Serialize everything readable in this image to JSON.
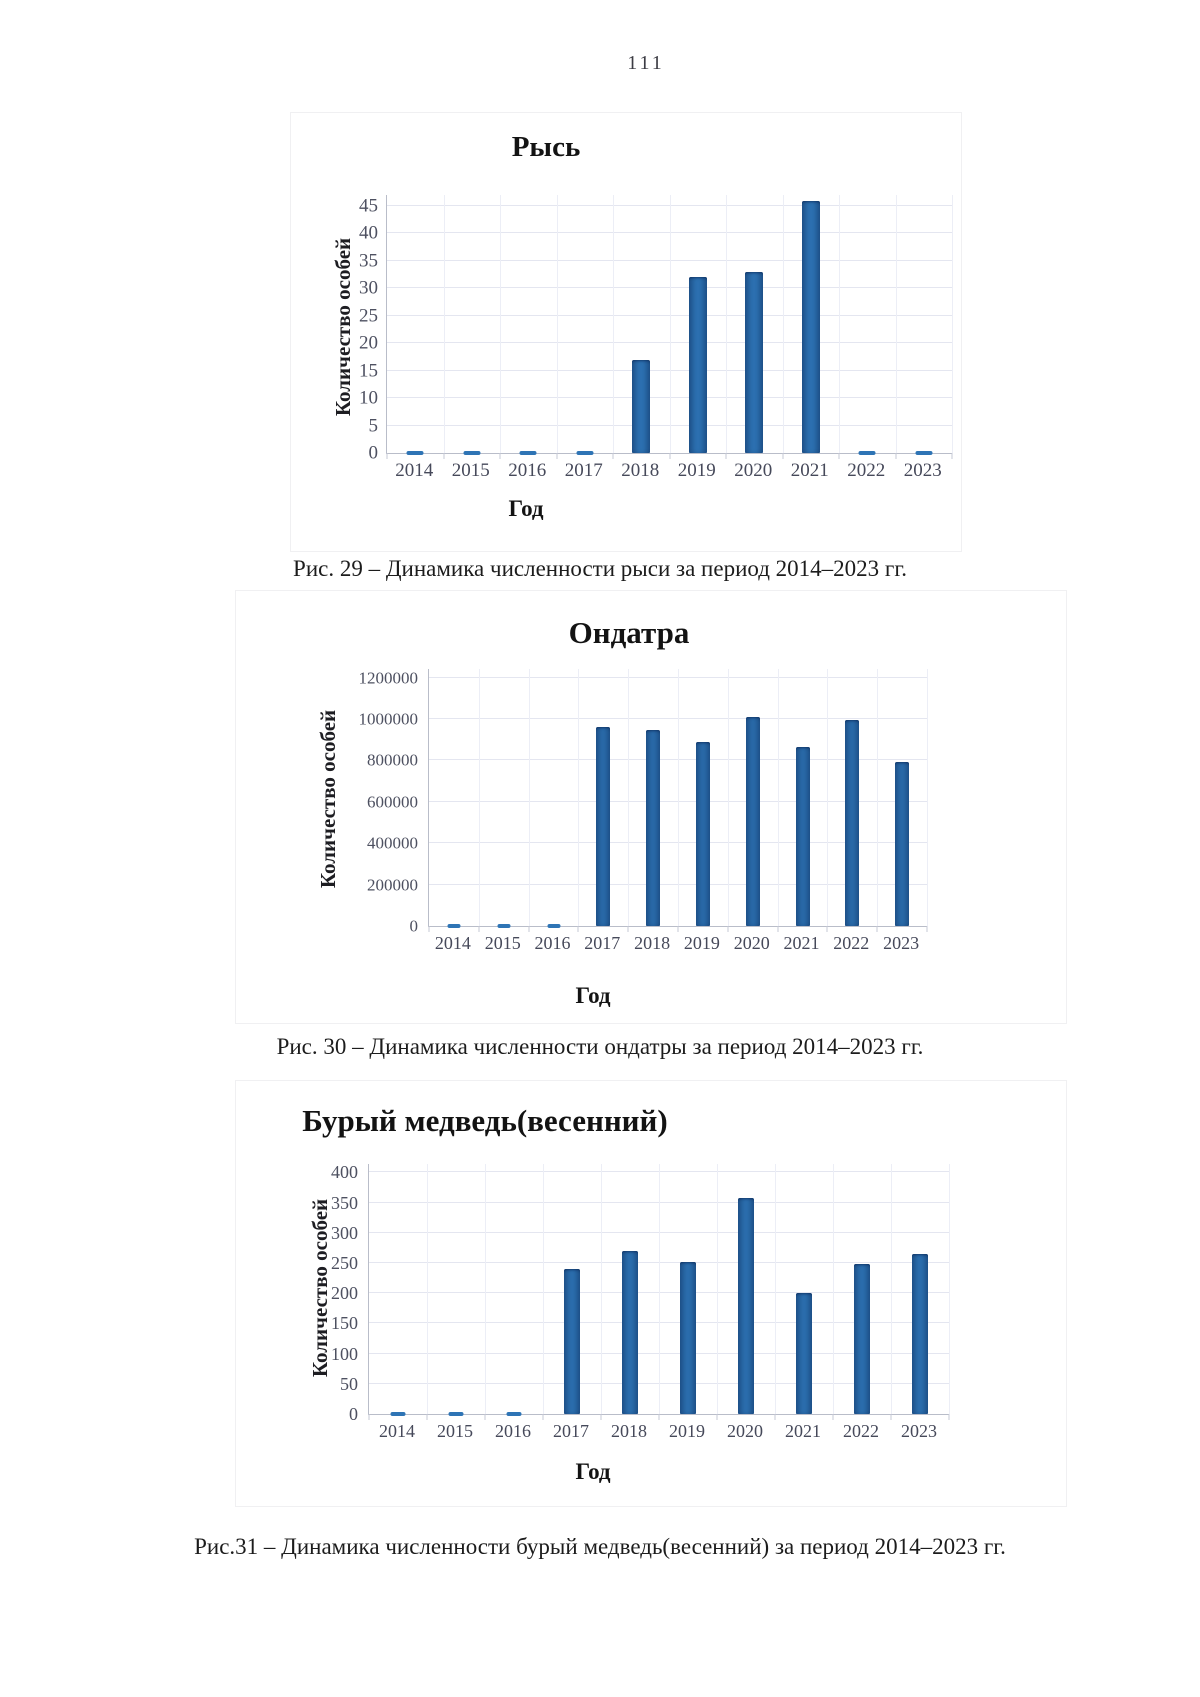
{
  "page": {
    "number": "111"
  },
  "colors": {
    "bar": "#2e74b5",
    "grid": "#e4e6f0",
    "tick_text": "#4d5060",
    "title_text": "#131313"
  },
  "chart_data": [
    {
      "type": "bar",
      "title": "Рысь",
      "xlabel": "Год",
      "ylabel": "Количество особей",
      "caption": "Рис. 29 – Динамика численности рыси за период 2014–2023 гг.",
      "categories": [
        "2014",
        "2015",
        "2016",
        "2017",
        "2018",
        "2019",
        "2020",
        "2021",
        "2022",
        "2023"
      ],
      "values": [
        0,
        0,
        0,
        0,
        17,
        32,
        33,
        46,
        0,
        0
      ],
      "yticks": [
        0,
        5,
        10,
        15,
        20,
        25,
        30,
        35,
        40,
        45
      ],
      "ylim": [
        0,
        47
      ],
      "grid": true,
      "legend": false
    },
    {
      "type": "bar",
      "title": "Ондатра",
      "xlabel": "Год",
      "ylabel": "Количество особей",
      "caption": "Рис. 30 – Динамика численности ондатры за период 2014–2023 гг.",
      "categories": [
        "2014",
        "2015",
        "2016",
        "2017",
        "2018",
        "2019",
        "2020",
        "2021",
        "2022",
        "2023"
      ],
      "values": [
        0,
        0,
        0,
        960000,
        945000,
        890000,
        1010000,
        865000,
        995000,
        795000
      ],
      "yticks": [
        0,
        200000,
        400000,
        600000,
        800000,
        1000000,
        1200000
      ],
      "ylim": [
        0,
        1242000
      ],
      "grid": true,
      "legend": false
    },
    {
      "type": "bar",
      "title": "Бурый медведь(весенний)",
      "xlabel": "Год",
      "ylabel": "Количество особей",
      "caption": "Рис.31 – Динамика численности бурый медведь(весенний) за период 2014–2023 гг.",
      "categories": [
        "2014",
        "2015",
        "2016",
        "2017",
        "2018",
        "2019",
        "2020",
        "2021",
        "2022",
        "2023"
      ],
      "values": [
        0,
        0,
        0,
        240,
        270,
        252,
        357,
        200,
        248,
        265
      ],
      "yticks": [
        0,
        50,
        100,
        150,
        200,
        250,
        300,
        350,
        400
      ],
      "ylim": [
        0,
        414
      ],
      "grid": true,
      "legend": false
    }
  ]
}
